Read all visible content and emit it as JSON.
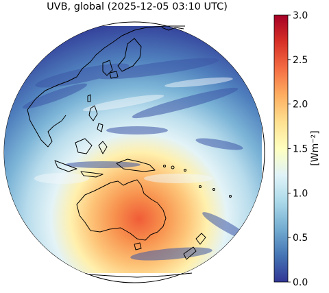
{
  "title": "UVB, global (2025-12-05 03:10 UTC)",
  "colorbar": {
    "label": "[Wm⁻²]",
    "ticks": [
      "0.0",
      "0.5",
      "1.0",
      "1.5",
      "2.0",
      "2.5",
      "3.0"
    ],
    "vmin": 0.0,
    "vmax": 3.0,
    "colormap": [
      "#313695",
      "#4575b4",
      "#74add1",
      "#abd9e9",
      "#e0f3f8",
      "#ffffbf",
      "#fee090",
      "#fdae61",
      "#f46d43",
      "#d73027",
      "#a50026"
    ]
  },
  "map": {
    "projection": "orthographic",
    "colors": {
      "low": "#3b4fa0",
      "mid": "#e6f1f7",
      "high": "#e8703f",
      "coast": "#000000"
    }
  }
}
